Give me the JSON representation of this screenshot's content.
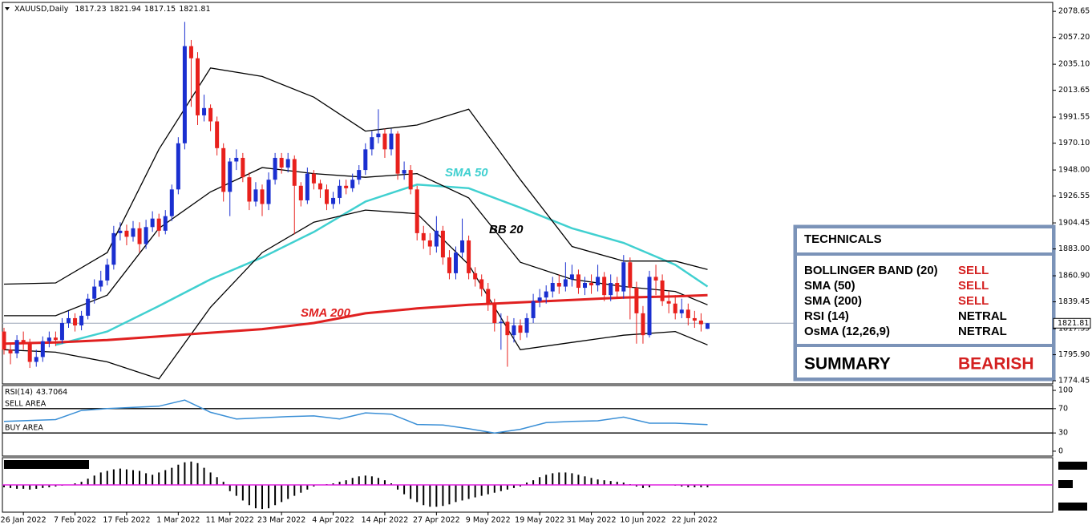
{
  "chart_data": [
    {
      "type": "candlestick",
      "title": "XAUUSD,Daily",
      "categories": [
        null,
        null,
        null,
        "26 Jan 2022",
        null,
        null,
        null,
        null,
        null,
        null,
        null,
        "7 Feb 2022",
        null,
        null,
        null,
        null,
        null,
        null,
        null,
        "17 Feb 2022",
        null,
        null,
        null,
        null,
        null,
        null,
        null,
        "1 Mar 2022",
        null,
        null,
        null,
        null,
        null,
        null,
        null,
        "11 Mar 2022",
        null,
        null,
        null,
        null,
        null,
        null,
        null,
        "23 Mar 2022",
        null,
        null,
        null,
        null,
        null,
        null,
        null,
        "4 Apr 2022",
        null,
        null,
        null,
        null,
        null,
        null,
        null,
        "14 Apr 2022",
        null,
        null,
        null,
        null,
        null,
        null,
        null,
        "27 Apr 2022",
        null,
        null,
        null,
        null,
        null,
        null,
        null,
        "9 May 2022",
        null,
        null,
        null,
        null,
        null,
        null,
        null,
        "19 May 2022",
        null,
        null,
        null,
        null,
        null,
        null,
        null,
        "31 May 2022",
        null,
        null,
        null,
        null,
        null,
        null,
        null,
        "10 Jun 2022",
        null,
        null,
        null,
        null,
        null,
        null,
        null,
        "22 Jun 2022",
        null,
        null
      ],
      "open": [
        1815,
        1800,
        1797,
        1808,
        1805,
        1790,
        1794,
        1807,
        1810,
        1808,
        1822,
        1826,
        1820,
        1828,
        1842,
        1852,
        1857,
        1870,
        1896,
        1898,
        1893,
        1900,
        1887,
        1901,
        1908,
        1898,
        1910,
        1932,
        1970,
        2050,
        2040,
        1993,
        1999,
        1988,
        1966,
        1930,
        1955,
        1958,
        1942,
        1922,
        1932,
        1920,
        1940,
        1958,
        1950,
        1957,
        1935,
        1923,
        1945,
        1937,
        1932,
        1920,
        1925,
        1935,
        1933,
        1940,
        1948,
        1965,
        1975,
        1978,
        1965,
        1978,
        1945,
        1948,
        1932,
        1896,
        1890,
        1885,
        1898,
        1876,
        1863,
        1880,
        1890,
        1863,
        1858,
        1850,
        1838,
        1822,
        1823,
        1812,
        1820,
        1814,
        1826,
        1840,
        1843,
        1848,
        1855,
        1852,
        1858,
        1862,
        1851,
        1855,
        1853,
        1860,
        1845,
        1855,
        1848,
        1872,
        1851,
        1830,
        1812,
        1860,
        1857,
        1840,
        1838,
        1830,
        1833,
        1826,
        1824,
        1817.23
      ],
      "high": [
        1818,
        1806,
        1812,
        1815,
        1809,
        1800,
        1811,
        1815,
        1815,
        1826,
        1832,
        1830,
        1832,
        1846,
        1858,
        1865,
        1875,
        1902,
        1905,
        1903,
        1906,
        1905,
        1907,
        1914,
        1912,
        1915,
        1936,
        1975,
        2070,
        2055,
        2045,
        2010,
        2002,
        1992,
        1970,
        1958,
        1965,
        1962,
        1946,
        1938,
        1936,
        1946,
        1962,
        1962,
        1962,
        1960,
        1938,
        1950,
        1948,
        1940,
        1936,
        1930,
        1940,
        1940,
        1945,
        1952,
        1970,
        1980,
        1998,
        1982,
        1982,
        1980,
        1955,
        1952,
        1935,
        1902,
        1896,
        1910,
        1902,
        1882,
        1885,
        1908,
        1894,
        1868,
        1862,
        1855,
        1842,
        1830,
        1828,
        1826,
        1825,
        1830,
        1846,
        1850,
        1853,
        1860,
        1862,
        1872,
        1870,
        1866,
        1860,
        1862,
        1870,
        1864,
        1862,
        1860,
        1878,
        1876,
        1856,
        1836,
        1865,
        1870,
        1862,
        1848,
        1845,
        1842,
        1838,
        1832,
        1830,
        1821.94
      ],
      "low": [
        1796,
        1788,
        1793,
        1800,
        1785,
        1786,
        1790,
        1802,
        1803,
        1805,
        1818,
        1815,
        1816,
        1825,
        1838,
        1848,
        1853,
        1866,
        1890,
        1886,
        1889,
        1880,
        1883,
        1897,
        1893,
        1895,
        1906,
        1928,
        1965,
        2000,
        1985,
        1988,
        1980,
        1960,
        1922,
        1910,
        1948,
        1938,
        1915,
        1918,
        1910,
        1915,
        1936,
        1945,
        1946,
        1895,
        1918,
        1920,
        1932,
        1925,
        1915,
        1916,
        1920,
        1928,
        1930,
        1936,
        1944,
        1960,
        1970,
        1958,
        1960,
        1940,
        1940,
        1928,
        1890,
        1883,
        1878,
        1880,
        1870,
        1858,
        1858,
        1876,
        1858,
        1852,
        1844,
        1832,
        1815,
        1800,
        1786,
        1806,
        1808,
        1810,
        1822,
        1835,
        1838,
        1843,
        1846,
        1848,
        1852,
        1846,
        1845,
        1846,
        1848,
        1840,
        1840,
        1842,
        1842,
        1825,
        1805,
        1805,
        1810,
        1845,
        1836,
        1830,
        1825,
        1826,
        1820,
        1818,
        1815,
        1817.15
      ],
      "close": [
        1800,
        1797,
        1808,
        1805,
        1790,
        1794,
        1807,
        1810,
        1808,
        1822,
        1826,
        1820,
        1828,
        1842,
        1852,
        1857,
        1870,
        1896,
        1898,
        1893,
        1900,
        1887,
        1901,
        1908,
        1898,
        1910,
        1932,
        1970,
        2050,
        2040,
        1993,
        1999,
        1988,
        1966,
        1930,
        1955,
        1958,
        1942,
        1922,
        1932,
        1920,
        1940,
        1958,
        1950,
        1957,
        1935,
        1923,
        1945,
        1937,
        1932,
        1920,
        1925,
        1935,
        1933,
        1940,
        1948,
        1965,
        1975,
        1978,
        1965,
        1978,
        1945,
        1948,
        1932,
        1896,
        1890,
        1885,
        1898,
        1876,
        1863,
        1880,
        1890,
        1863,
        1858,
        1850,
        1838,
        1822,
        1823,
        1812,
        1820,
        1814,
        1826,
        1840,
        1843,
        1848,
        1855,
        1852,
        1858,
        1862,
        1851,
        1855,
        1853,
        1860,
        1845,
        1855,
        1848,
        1872,
        1851,
        1830,
        1812,
        1860,
        1857,
        1840,
        1838,
        1830,
        1833,
        1826,
        1824,
        1821,
        1821.81
      ],
      "up_color": "#1a2fd0",
      "down_color": "#e8201c",
      "ylim": [
        1772.5,
        2086
      ],
      "yticks": [
        {
          "value": 2078.65,
          "label": "2078.65"
        },
        {
          "value": 2057.2,
          "label": "2057.20"
        },
        {
          "value": 2035.1,
          "label": "2035.10"
        },
        {
          "value": 2013.65,
          "label": "2013.65"
        },
        {
          "value": 1991.55,
          "label": "1991.55"
        },
        {
          "value": 1970.1,
          "label": "1970.10"
        },
        {
          "value": 1948,
          "label": "1948.00"
        },
        {
          "value": 1926.55,
          "label": "1926.55"
        },
        {
          "value": 1904.45,
          "label": "1904.45"
        },
        {
          "value": 1883,
          "label": "1883.00"
        },
        {
          "value": 1860.9,
          "label": "1860.90"
        },
        {
          "value": 1839.45,
          "label": "1839.45"
        },
        {
          "value": 1817.35,
          "label": "1817.35"
        },
        {
          "value": 1795.9,
          "label": "1795.90"
        },
        {
          "value": 1774.45,
          "label": "1774.45"
        }
      ],
      "overlays": [
        {
          "name": "SMA 50",
          "color": "#40d0d0",
          "x": [
            0,
            8,
            16,
            24,
            32,
            40,
            48,
            56,
            64,
            72,
            80,
            88,
            96,
            104,
            109
          ],
          "values": [
            null,
            1804,
            1815,
            1836,
            1858,
            1876,
            1897,
            1922,
            1936,
            1933,
            1917,
            1900,
            1888,
            1870,
            1852
          ]
        },
        {
          "name": "BB 20",
          "color": "#000000",
          "x": [
            0,
            8,
            16,
            24,
            32,
            40,
            48,
            56,
            64,
            72,
            80,
            88,
            96,
            104,
            109
          ],
          "upper": [
            1854,
            1855,
            1880,
            1965,
            2032,
            2025,
            2008,
            1980,
            1985,
            1998,
            1940,
            1885,
            1873,
            1873,
            1866
          ],
          "middle": [
            1828,
            1828,
            1845,
            1900,
            1930,
            1950,
            1945,
            1942,
            1945,
            1925,
            1872,
            1858,
            1852,
            1848,
            1837
          ],
          "lower": [
            1800,
            1798,
            1790,
            1776,
            1835,
            1880,
            1905,
            1915,
            1912,
            1870,
            1800,
            1806,
            1812,
            1815,
            1804
          ]
        },
        {
          "name": "SMA 200",
          "color": "#e02020",
          "x": [
            0,
            8,
            16,
            24,
            32,
            40,
            48,
            56,
            64,
            72,
            80,
            88,
            96,
            104,
            109
          ],
          "values": [
            1805,
            1806,
            1808,
            1811,
            1814,
            1817,
            1822,
            1830,
            1834,
            1837,
            1839,
            1841,
            1843,
            1844,
            1845
          ]
        }
      ]
    },
    {
      "type": "line",
      "title": "RSI(14)",
      "color": "#3a8fd6",
      "x": [
        0,
        8,
        12,
        16,
        20,
        24,
        28,
        32,
        36,
        40,
        44,
        48,
        52,
        56,
        60,
        64,
        68,
        72,
        76,
        80,
        84,
        88,
        92,
        96,
        100,
        104,
        109
      ],
      "values": [
        49,
        52,
        67,
        70,
        72,
        74,
        84,
        64,
        53,
        55,
        57,
        58,
        53,
        63,
        61,
        44,
        43,
        37,
        30,
        36,
        47,
        49,
        50,
        56,
        46,
        46,
        43.7064
      ],
      "ylim": [
        -8,
        108
      ],
      "yticks": [
        100,
        70,
        30,
        0
      ],
      "levels": [
        {
          "value": 70,
          "label": "SELL AREA"
        },
        {
          "value": 30,
          "label": "BUY AREA"
        }
      ]
    },
    {
      "type": "bar",
      "color": "#000000",
      "zero_color": "#e020e0",
      "ylim": [
        -35,
        35
      ],
      "values": [
        -3,
        -4,
        -5,
        -5,
        -6,
        -5,
        -4,
        -3,
        -2,
        -1,
        0,
        2,
        4,
        8,
        12,
        16,
        18,
        20,
        21,
        20,
        19,
        18,
        15,
        13,
        16,
        19,
        22,
        26,
        29,
        30,
        28,
        22,
        16,
        10,
        4,
        -8,
        -14,
        -20,
        -26,
        -30,
        -31,
        -30,
        -26,
        -22,
        -18,
        -14,
        -10,
        -6,
        -2,
        0,
        1,
        2,
        4,
        6,
        9,
        11,
        12,
        11,
        9,
        6,
        2,
        -6,
        -12,
        -18,
        -22,
        -26,
        -28,
        -28,
        -27,
        -25,
        -22,
        -20,
        -18,
        -16,
        -14,
        -12,
        -10,
        -8,
        -6,
        -4,
        -2,
        3,
        6,
        10,
        13,
        15,
        16,
        16,
        15,
        13,
        11,
        9,
        7,
        6,
        5,
        4,
        3,
        1,
        -2,
        -4,
        -3,
        0,
        0,
        0,
        -1,
        -2,
        -3,
        -3,
        -3,
        -3
      ]
    }
  ],
  "technicals": {
    "title": "TECHNICALS",
    "rows": [
      [
        "BOLLINGER BAND (20)",
        "SELL"
      ],
      [
        "SMA (50)",
        "SELL"
      ],
      [
        "SMA (200)",
        "SELL"
      ],
      [
        "RSI (14)",
        "NETRAL"
      ],
      [
        "OsMA (12,26,9)",
        "NETRAL"
      ]
    ],
    "summary": [
      "SUMMARY",
      "BEARISH"
    ]
  }
}
